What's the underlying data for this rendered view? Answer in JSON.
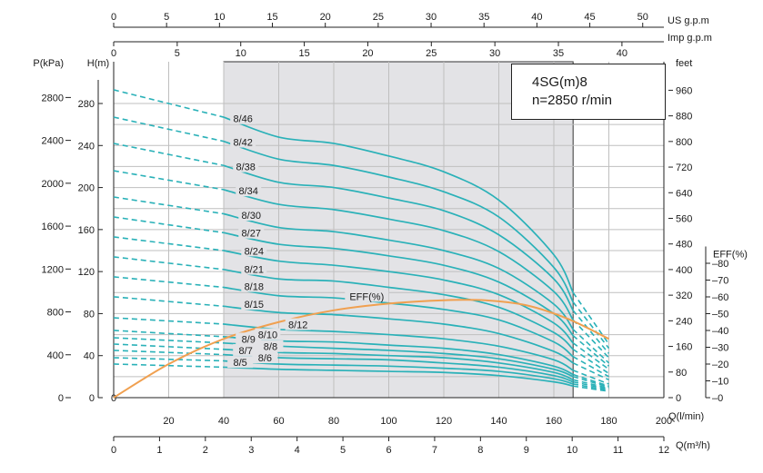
{
  "chart_data": {
    "type": "line",
    "title": "",
    "model": "4SG(m)8",
    "speed": "n=2850 r/min",
    "axes": {
      "us_gpm": {
        "label": "US  g.p.m",
        "range": [
          0,
          52
        ],
        "ticks": [
          0,
          5,
          10,
          15,
          20,
          25,
          30,
          35,
          40,
          45,
          50
        ]
      },
      "imp_gpm": {
        "label": "Imp  g.p.m",
        "range": [
          0,
          43.3
        ],
        "ticks": [
          0,
          5,
          10,
          15,
          20,
          25,
          30,
          35,
          40
        ]
      },
      "q_lmin": {
        "label": "Q(l/min)",
        "range": [
          0,
          200
        ],
        "ticks": [
          20,
          40,
          60,
          80,
          100,
          120,
          140,
          160,
          180,
          200
        ],
        "zero_label": "0"
      },
      "q_m3h": {
        "label": "Q(m³/h)",
        "range": [
          0,
          12
        ],
        "ticks": [
          0,
          1,
          2,
          3,
          4,
          5,
          6,
          7,
          8,
          9,
          10,
          11,
          12
        ]
      },
      "pressure_kpa": {
        "label": "P(kPa)",
        "range": [
          0,
          2881
        ],
        "ticks": [
          0,
          400,
          800,
          1200,
          1600,
          2000,
          2400,
          2800
        ]
      },
      "head_m": {
        "label": "H(m)",
        "range": [
          0,
          294
        ],
        "ticks": [
          0,
          40,
          80,
          120,
          160,
          200,
          240,
          280
        ]
      },
      "head_feet": {
        "label": "feet",
        "range": [
          0,
          964
        ],
        "ticks": [
          0,
          80,
          160,
          240,
          320,
          400,
          480,
          560,
          640,
          720,
          800,
          880,
          960
        ]
      },
      "eff_percent": {
        "label": "EFF(%)",
        "range": [
          0,
          90
        ],
        "ticks": [
          0,
          10,
          20,
          30,
          40,
          50,
          60,
          70,
          80
        ]
      }
    },
    "recommended_range_lmin": [
      40,
      167
    ],
    "grid": true,
    "series": [
      {
        "name": "8/5",
        "x": [
          0,
          40,
          60,
          80,
          100,
          120,
          140,
          160,
          167,
          180
        ],
        "y": [
          32,
          29,
          27,
          26,
          25,
          24,
          21,
          15,
          11,
          6
        ]
      },
      {
        "name": "8/6",
        "x": [
          0,
          40,
          60,
          80,
          100,
          120,
          140,
          160,
          167,
          180
        ],
        "y": [
          38,
          35,
          32,
          31,
          30,
          28,
          25,
          18,
          13,
          7
        ]
      },
      {
        "name": "8/7",
        "x": [
          0,
          40,
          60,
          80,
          100,
          120,
          140,
          160,
          167,
          180
        ],
        "y": [
          45,
          41,
          38,
          37,
          36,
          33,
          29,
          21,
          15,
          8
        ]
      },
      {
        "name": "8/8",
        "x": [
          0,
          40,
          60,
          80,
          100,
          120,
          140,
          160,
          167,
          180
        ],
        "y": [
          51,
          46,
          43,
          42,
          40,
          38,
          33,
          24,
          17,
          9
        ]
      },
      {
        "name": "8/9",
        "x": [
          0,
          40,
          60,
          80,
          100,
          120,
          140,
          160,
          167,
          180
        ],
        "y": [
          57,
          52,
          49,
          47,
          45,
          42,
          37,
          27,
          20,
          10
        ]
      },
      {
        "name": "8/10",
        "x": [
          0,
          40,
          60,
          80,
          100,
          120,
          140,
          160,
          167,
          180
        ],
        "y": [
          64,
          58,
          54,
          53,
          50,
          47,
          41,
          30,
          22,
          11
        ]
      },
      {
        "name": "8/12",
        "x": [
          0,
          40,
          60,
          80,
          100,
          120,
          140,
          160,
          167,
          180
        ],
        "y": [
          76,
          70,
          65,
          63,
          60,
          56,
          49,
          36,
          26,
          13
        ]
      },
      {
        "name": "8/15",
        "x": [
          0,
          40,
          60,
          80,
          100,
          120,
          140,
          160,
          167,
          180
        ],
        "y": [
          96,
          87,
          81,
          79,
          75,
          70,
          61,
          44,
          33,
          17
        ]
      },
      {
        "name": "8/18",
        "x": [
          0,
          40,
          60,
          80,
          100,
          120,
          140,
          160,
          167,
          180
        ],
        "y": [
          115,
          105,
          97,
          95,
          90,
          84,
          74,
          53,
          39,
          20
        ]
      },
      {
        "name": "8/21",
        "x": [
          0,
          40,
          60,
          80,
          100,
          120,
          140,
          160,
          167,
          180
        ],
        "y": [
          134,
          122,
          113,
          111,
          105,
          98,
          86,
          62,
          46,
          23
        ]
      },
      {
        "name": "8/24",
        "x": [
          0,
          40,
          60,
          80,
          100,
          120,
          140,
          160,
          167,
          180
        ],
        "y": [
          153,
          140,
          130,
          126,
          120,
          112,
          98,
          71,
          52,
          27
        ]
      },
      {
        "name": "8/27",
        "x": [
          0,
          40,
          60,
          80,
          100,
          120,
          140,
          160,
          167,
          180
        ],
        "y": [
          172,
          157,
          146,
          142,
          135,
          126,
          110,
          80,
          59,
          30
        ]
      },
      {
        "name": "8/30",
        "x": [
          0,
          40,
          60,
          80,
          100,
          120,
          140,
          160,
          167,
          180
        ],
        "y": [
          191,
          175,
          162,
          158,
          150,
          140,
          123,
          89,
          65,
          33
        ]
      },
      {
        "name": "8/34",
        "x": [
          0,
          40,
          60,
          80,
          100,
          120,
          140,
          160,
          167,
          180
        ],
        "y": [
          216,
          198,
          184,
          179,
          170,
          159,
          139,
          101,
          74,
          38
        ]
      },
      {
        "name": "8/38",
        "x": [
          0,
          40,
          60,
          80,
          100,
          120,
          140,
          160,
          167,
          180
        ],
        "y": [
          242,
          221,
          205,
          200,
          190,
          178,
          155,
          113,
          83,
          42
        ]
      },
      {
        "name": "8/42",
        "x": [
          0,
          40,
          60,
          80,
          100,
          120,
          140,
          160,
          167,
          180
        ],
        "y": [
          267,
          244,
          227,
          221,
          210,
          196,
          172,
          124,
          91,
          47
        ]
      },
      {
        "name": "8/46",
        "x": [
          0,
          40,
          60,
          80,
          100,
          120,
          140,
          160,
          167,
          180
        ],
        "y": [
          293,
          267,
          248,
          242,
          230,
          215,
          188,
          136,
          100,
          51
        ]
      }
    ],
    "efficiency": {
      "name": "EFF(%)",
      "x": [
        0,
        20,
        40,
        60,
        80,
        100,
        120,
        135,
        150,
        165,
        180
      ],
      "y": [
        0,
        20,
        35,
        45,
        52,
        56,
        58,
        58,
        55,
        47,
        35
      ]
    }
  }
}
